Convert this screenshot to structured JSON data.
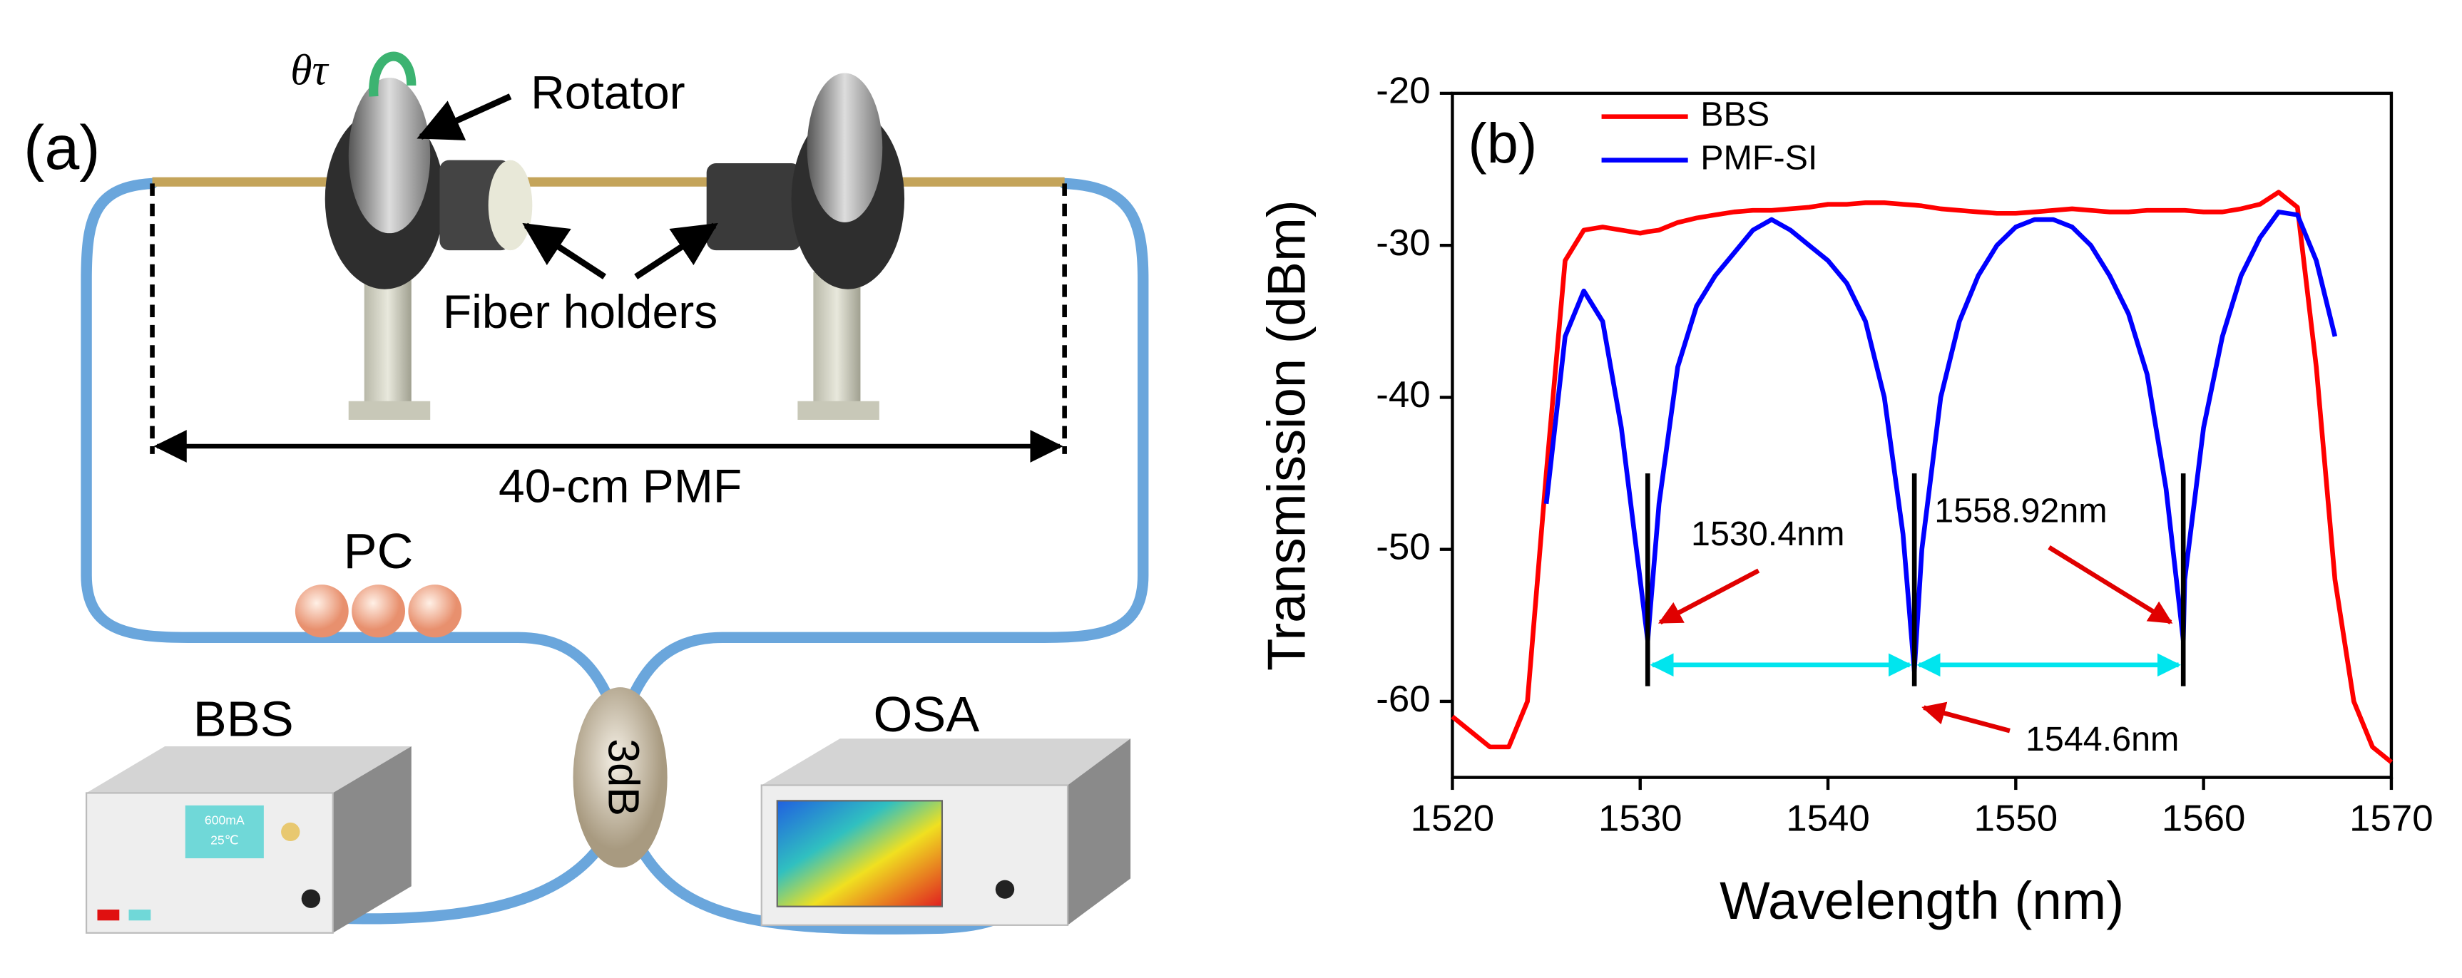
{
  "diagram": {
    "panel_label": "(a)",
    "rotator_angle": "θτ",
    "rotator_label": "Rotator",
    "holders_label": "Fiber holders",
    "length_label": "40-cm PMF",
    "pc_label": "PC",
    "source_label": "BBS",
    "source_display": [
      "600mA",
      "25℃"
    ],
    "coupler_label": "3dB",
    "analyzer_label": "OSA"
  },
  "chart_data": {
    "type": "line",
    "panel_label": "(b)",
    "x_label": "Wavelength (nm)",
    "y_label": "Transmission (dBm)",
    "xlim": [
      1520,
      1570
    ],
    "xticks": [
      1520,
      1530,
      1540,
      1550,
      1560,
      1570
    ],
    "ylim": [
      -65,
      -20
    ],
    "yticks": [
      -20,
      -30,
      -40,
      -50,
      -60
    ],
    "legend": "top-left",
    "x": [
      1520,
      1521,
      1522,
      1523,
      1524,
      1525,
      1526,
      1527,
      1528,
      1529,
      1530,
      1530.4,
      1531,
      1532,
      1533,
      1534,
      1535,
      1536,
      1537,
      1538,
      1539,
      1540,
      1541,
      1542,
      1543,
      1544,
      1544.6,
      1545,
      1546,
      1547,
      1548,
      1549,
      1550,
      1551,
      1552,
      1553,
      1554,
      1555,
      1556,
      1557,
      1558,
      1558.92,
      1559,
      1560,
      1561,
      1562,
      1563,
      1564,
      1565,
      1566,
      1567,
      1568,
      1569,
      1570
    ],
    "series": [
      {
        "name": "BBS",
        "color": "#ff0000",
        "values": [
          -61,
          -62,
          -63,
          -63,
          -60,
          -45,
          -31,
          -29,
          -28.8,
          -29,
          -29.2,
          -29.1,
          -29,
          -28.5,
          -28.2,
          -28,
          -27.8,
          -27.7,
          -27.7,
          -27.6,
          -27.5,
          -27.3,
          -27.3,
          -27.2,
          -27.2,
          -27.3,
          -27.35,
          -27.4,
          -27.6,
          -27.7,
          -27.8,
          -27.9,
          -27.9,
          -27.8,
          -27.7,
          -27.6,
          -27.7,
          -27.8,
          -27.8,
          -27.7,
          -27.7,
          -27.7,
          -27.7,
          -27.8,
          -27.8,
          -27.6,
          -27.3,
          -26.5,
          -27.5,
          -38,
          -52,
          -60,
          -63,
          -64
        ]
      },
      {
        "name": "PMF-SI",
        "color": "#0000ff",
        "values": [
          null,
          null,
          null,
          null,
          null,
          -47,
          -36,
          -33,
          -35,
          -42,
          -52,
          -56,
          -47,
          -38,
          -34,
          -32,
          -30.5,
          -29,
          -28.3,
          -29,
          -30,
          -31,
          -32.5,
          -35,
          -40,
          -49,
          -58,
          -50,
          -40,
          -35,
          -32,
          -30,
          -28.8,
          -28.3,
          -28.3,
          -28.8,
          -30,
          -32,
          -34.5,
          -38.5,
          -46,
          -56,
          -52,
          -42,
          -36,
          -32,
          -29.5,
          -27.8,
          -28,
          -31,
          -36,
          null,
          null,
          null
        ]
      }
    ],
    "annotations": [
      {
        "label": "1530.4nm",
        "x": 1530.4
      },
      {
        "label": "1544.6nm",
        "x": 1544.6
      },
      {
        "label": "1558.92nm",
        "x": 1558.92
      }
    ]
  }
}
